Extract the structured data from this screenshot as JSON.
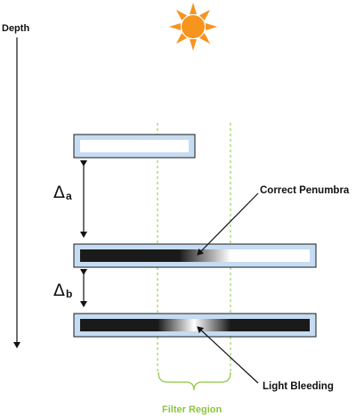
{
  "labels": {
    "depth": "Depth",
    "correct_penumbra": "Correct Penumbra",
    "light_bleeding": "Light Bleeding",
    "filter_region": "Filter Region",
    "delta_symbol": "Δ",
    "delta_a": "a",
    "delta_b": "b"
  },
  "colors": {
    "sun": "#f7941d",
    "plate_fill": "#c5dcf2",
    "plate_border": "#1a1a1a",
    "shadow": "#1a1a1a",
    "lit": "#ffffff",
    "filter": "#8cc63f"
  },
  "icons": {
    "light_source": "sun-icon"
  }
}
